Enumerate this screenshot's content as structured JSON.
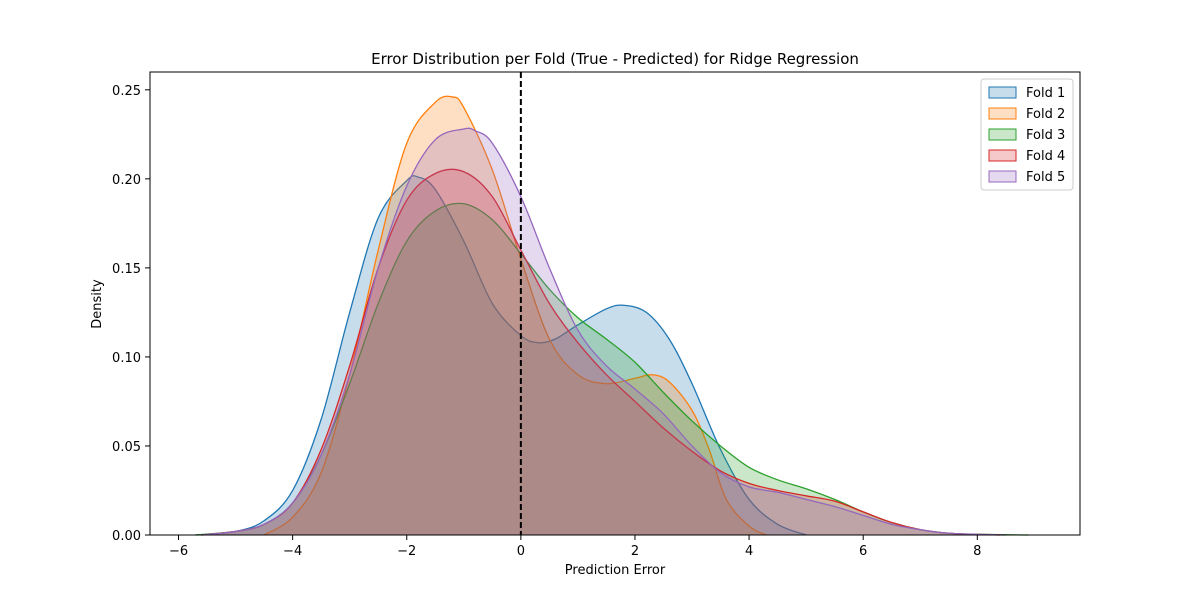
{
  "chart_data": {
    "type": "area",
    "title": "Error Distribution per Fold (True - Predicted) for Ridge Regression",
    "xlabel": "Prediction Error",
    "ylabel": "Density",
    "xlim": [
      -6.5,
      9.8
    ],
    "ylim": [
      0,
      0.26
    ],
    "xticks": [
      -6,
      -4,
      -2,
      0,
      2,
      4,
      6,
      8
    ],
    "yticks": [
      0.0,
      0.05,
      0.1,
      0.15,
      0.2,
      0.25
    ],
    "grid": false,
    "legend_position": "top-right",
    "reference_line": {
      "x": 0,
      "style": "dashed",
      "color": "#000000"
    },
    "series": [
      {
        "name": "Fold 1",
        "color": "#1f77b4",
        "x": [
          -5.7,
          -5.0,
          -4.5,
          -4.0,
          -3.5,
          -3.0,
          -2.5,
          -2.0,
          -1.8,
          -1.5,
          -1.0,
          -0.5,
          0.0,
          0.3,
          0.6,
          1.0,
          1.5,
          1.8,
          2.2,
          2.6,
          3.0,
          3.5,
          4.0,
          4.5,
          5.0
        ],
        "y": [
          0.0,
          0.002,
          0.008,
          0.025,
          0.065,
          0.125,
          0.178,
          0.199,
          0.201,
          0.194,
          0.165,
          0.13,
          0.112,
          0.108,
          0.11,
          0.118,
          0.127,
          0.129,
          0.125,
          0.11,
          0.085,
          0.048,
          0.02,
          0.006,
          0.0
        ]
      },
      {
        "name": "Fold 2",
        "color": "#ff7f0e",
        "x": [
          -4.5,
          -4.0,
          -3.5,
          -3.0,
          -2.5,
          -2.0,
          -1.5,
          -1.2,
          -1.0,
          -0.5,
          0.0,
          0.5,
          1.0,
          1.5,
          2.0,
          2.3,
          2.6,
          3.0,
          3.3,
          3.6,
          4.0,
          4.3
        ],
        "y": [
          0.0,
          0.01,
          0.035,
          0.09,
          0.16,
          0.22,
          0.243,
          0.246,
          0.24,
          0.205,
          0.155,
          0.11,
          0.09,
          0.085,
          0.088,
          0.09,
          0.086,
          0.07,
          0.048,
          0.02,
          0.005,
          0.0
        ]
      },
      {
        "name": "Fold 3",
        "color": "#2ca02c",
        "x": [
          -5.7,
          -5.0,
          -4.5,
          -4.0,
          -3.5,
          -3.0,
          -2.5,
          -2.0,
          -1.5,
          -1.0,
          -0.5,
          0.0,
          0.5,
          1.0,
          1.5,
          2.0,
          2.5,
          3.0,
          3.5,
          4.0,
          4.5,
          5.0,
          5.5,
          6.0,
          6.5,
          7.0,
          7.5,
          8.0,
          8.9
        ],
        "y": [
          0.0,
          0.002,
          0.006,
          0.018,
          0.045,
          0.085,
          0.13,
          0.165,
          0.182,
          0.186,
          0.177,
          0.158,
          0.138,
          0.122,
          0.11,
          0.097,
          0.08,
          0.064,
          0.05,
          0.038,
          0.031,
          0.026,
          0.02,
          0.013,
          0.007,
          0.003,
          0.001,
          0.0004,
          0.0
        ]
      },
      {
        "name": "Fold 4",
        "color": "#d62728",
        "x": [
          -5.6,
          -5.0,
          -4.5,
          -4.0,
          -3.5,
          -3.0,
          -2.5,
          -2.0,
          -1.5,
          -1.0,
          -0.5,
          0.0,
          0.5,
          1.0,
          1.5,
          2.0,
          2.5,
          3.0,
          3.5,
          4.0,
          4.5,
          5.0,
          5.5,
          6.0,
          6.5,
          7.0,
          7.5,
          8.4
        ],
        "y": [
          0.0,
          0.002,
          0.006,
          0.018,
          0.048,
          0.095,
          0.15,
          0.188,
          0.203,
          0.204,
          0.19,
          0.16,
          0.13,
          0.108,
          0.09,
          0.075,
          0.06,
          0.047,
          0.036,
          0.029,
          0.025,
          0.022,
          0.019,
          0.013,
          0.007,
          0.003,
          0.001,
          0.0
        ]
      },
      {
        "name": "Fold 5",
        "color": "#9467bd",
        "x": [
          -5.6,
          -5.0,
          -4.5,
          -4.0,
          -3.5,
          -3.0,
          -2.5,
          -2.0,
          -1.5,
          -1.0,
          -0.8,
          -0.5,
          0.0,
          0.5,
          1.0,
          1.5,
          2.0,
          2.5,
          3.0,
          3.5,
          4.0,
          4.5,
          5.0,
          5.5,
          6.0,
          6.5,
          7.0,
          7.5,
          8.5
        ],
        "y": [
          0.0,
          0.002,
          0.006,
          0.018,
          0.045,
          0.09,
          0.15,
          0.196,
          0.222,
          0.228,
          0.227,
          0.22,
          0.19,
          0.15,
          0.115,
          0.095,
          0.082,
          0.068,
          0.05,
          0.035,
          0.027,
          0.024,
          0.02,
          0.016,
          0.011,
          0.006,
          0.003,
          0.001,
          0.0
        ]
      }
    ]
  }
}
